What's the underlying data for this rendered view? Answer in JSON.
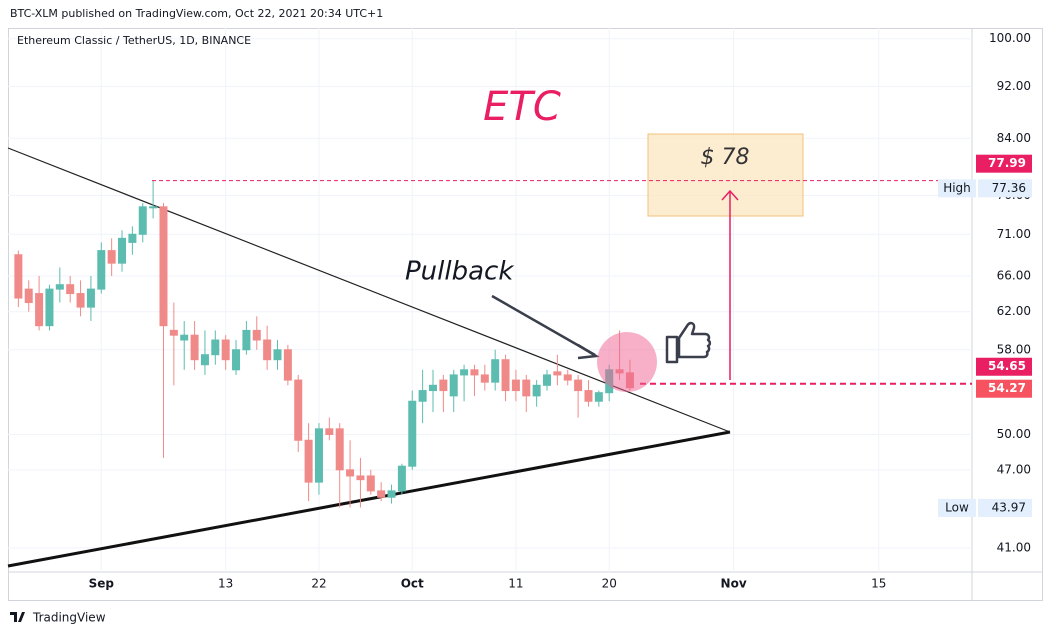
{
  "header": {
    "publisher": "BTC-XLM published on TradingView.com, Oct 22, 2021 20:34 UTC+1"
  },
  "footer": {
    "brand": "TradingView"
  },
  "chart_data": {
    "type": "candlestick",
    "symbol": "Ethereum Classic / TetherUS, 1D, BINANCE",
    "annotations": {
      "title": "ETC",
      "target": "$ 78",
      "note": "Pullback"
    },
    "log_scale": true,
    "grid": true,
    "up_color": "#5cbcb0",
    "down_color": "#f08a88",
    "xlim": [
      "2021-08-23",
      "2021-11-24"
    ],
    "xticks": [
      {
        "value": "2021-09-01",
        "label": "Sep"
      },
      {
        "value": "2021-09-13",
        "label": "13"
      },
      {
        "value": "2021-09-22",
        "label": "22"
      },
      {
        "value": "2021-10-01",
        "label": "Oct"
      },
      {
        "value": "2021-10-11",
        "label": "11"
      },
      {
        "value": "2021-10-20",
        "label": "20"
      },
      {
        "value": "2021-11-01",
        "label": "Nov"
      },
      {
        "value": "2021-11-15",
        "label": "15"
      }
    ],
    "ylim": [
      39.3,
      101.9
    ],
    "yticks": [
      {
        "value": 100,
        "label": "100.00"
      },
      {
        "value": 92,
        "label": "92.00"
      },
      {
        "value": 84,
        "label": "84.00"
      },
      {
        "value": 76,
        "label": "76.00"
      },
      {
        "value": 71,
        "label": "71.00"
      },
      {
        "value": 66,
        "label": "66.00"
      },
      {
        "value": 62,
        "label": "62.00"
      },
      {
        "value": 58,
        "label": "58.00"
      },
      {
        "value": 50,
        "label": "50.00"
      },
      {
        "value": 47,
        "label": "47.00"
      },
      {
        "value": 41,
        "label": "41.00"
      }
    ],
    "x": [
      "2021-08-24",
      "2021-08-25",
      "2021-08-26",
      "2021-08-27",
      "2021-08-28",
      "2021-08-29",
      "2021-08-30",
      "2021-08-31",
      "2021-09-01",
      "2021-09-02",
      "2021-09-03",
      "2021-09-04",
      "2021-09-05",
      "2021-09-06",
      "2021-09-07",
      "2021-09-08",
      "2021-09-09",
      "2021-09-10",
      "2021-09-11",
      "2021-09-12",
      "2021-09-13",
      "2021-09-14",
      "2021-09-15",
      "2021-09-16",
      "2021-09-17",
      "2021-09-18",
      "2021-09-19",
      "2021-09-20",
      "2021-09-21",
      "2021-09-22",
      "2021-09-23",
      "2021-09-24",
      "2021-09-25",
      "2021-09-26",
      "2021-09-27",
      "2021-09-28",
      "2021-09-29",
      "2021-09-30",
      "2021-10-01",
      "2021-10-02",
      "2021-10-03",
      "2021-10-04",
      "2021-10-05",
      "2021-10-06",
      "2021-10-07",
      "2021-10-08",
      "2021-10-09",
      "2021-10-10",
      "2021-10-11",
      "2021-10-12",
      "2021-10-13",
      "2021-10-14",
      "2021-10-15",
      "2021-10-16",
      "2021-10-17",
      "2021-10-18",
      "2021-10-19",
      "2021-10-20",
      "2021-10-21",
      "2021-10-22"
    ],
    "open": [
      68.5,
      64.5,
      64,
      60.5,
      64.5,
      65,
      64,
      62.5,
      64.5,
      69,
      67.5,
      70,
      71,
      74.5,
      74.5,
      60,
      59,
      59.5,
      56.5,
      57.5,
      59,
      56,
      58,
      60,
      59,
      57,
      58,
      55,
      49.5,
      46,
      50.5,
      50.5,
      47,
      46.5,
      46.5,
      45.3,
      44.8,
      45.3,
      47.3,
      53,
      54,
      55,
      53.5,
      55.5,
      56,
      55.5,
      54.8,
      57,
      55,
      55,
      53.5,
      54.5,
      55.8,
      55.5,
      55,
      54,
      53,
      53.8,
      56,
      55.7
    ],
    "high": [
      69,
      65.5,
      66,
      65,
      67,
      66,
      65.5,
      66,
      70,
      70.5,
      71.5,
      72,
      75,
      77.99,
      75,
      63,
      61,
      61,
      60,
      60,
      59.5,
      59,
      61,
      61.5,
      60.5,
      59,
      58.5,
      55.5,
      51,
      51,
      51.5,
      51,
      49.5,
      48,
      47,
      46,
      45.8,
      47.5,
      54,
      56,
      56,
      55.5,
      56,
      56.5,
      56.5,
      56.5,
      58,
      57.5,
      56,
      55.5,
      55,
      56,
      57.5,
      56,
      55.5,
      55,
      54,
      56.5,
      60,
      57
    ],
    "low": [
      62.5,
      62,
      60,
      60,
      63,
      63,
      61.5,
      61,
      64,
      66,
      66.5,
      68.5,
      70,
      73,
      48,
      54.5,
      56,
      56,
      55.5,
      56.5,
      56,
      55.5,
      57.5,
      58,
      56,
      56,
      54.5,
      48.5,
      44.5,
      45,
      49.5,
      44,
      44,
      44,
      45,
      44.5,
      44.3,
      45,
      47,
      51,
      52,
      52,
      52,
      53,
      53.5,
      54,
      54,
      53,
      53,
      52,
      52.5,
      54,
      54.5,
      54.5,
      51.5,
      52.5,
      52.5,
      53,
      55,
      54
    ],
    "close": [
      63.5,
      63,
      60.5,
      64.5,
      65,
      64,
      62.5,
      64.5,
      69,
      67.5,
      70.5,
      71,
      74.5,
      74.5,
      60.5,
      59.5,
      59.5,
      57,
      57.5,
      59,
      57,
      58,
      60,
      59,
      57,
      58,
      55,
      49.5,
      46,
      50.5,
      50,
      47,
      46.5,
      46.2,
      45.3,
      44.8,
      45.3,
      47.3,
      53,
      54,
      54.5,
      54,
      55.5,
      56,
      55.5,
      54.8,
      57,
      54,
      54,
      53.5,
      54.5,
      55.5,
      55.5,
      55,
      54,
      53,
      53.8,
      56,
      55.7,
      54.27
    ],
    "hlines": [
      {
        "value": 77.99,
        "color": "#e91e63"
      },
      {
        "value": 54.65,
        "color": "#e91e63"
      }
    ],
    "last_price": {
      "value": 54.27,
      "color": "#f7525f"
    },
    "high_mark": {
      "label": "High",
      "value": 77.36
    },
    "low_mark": {
      "label": "Low",
      "value": 43.97
    }
  }
}
